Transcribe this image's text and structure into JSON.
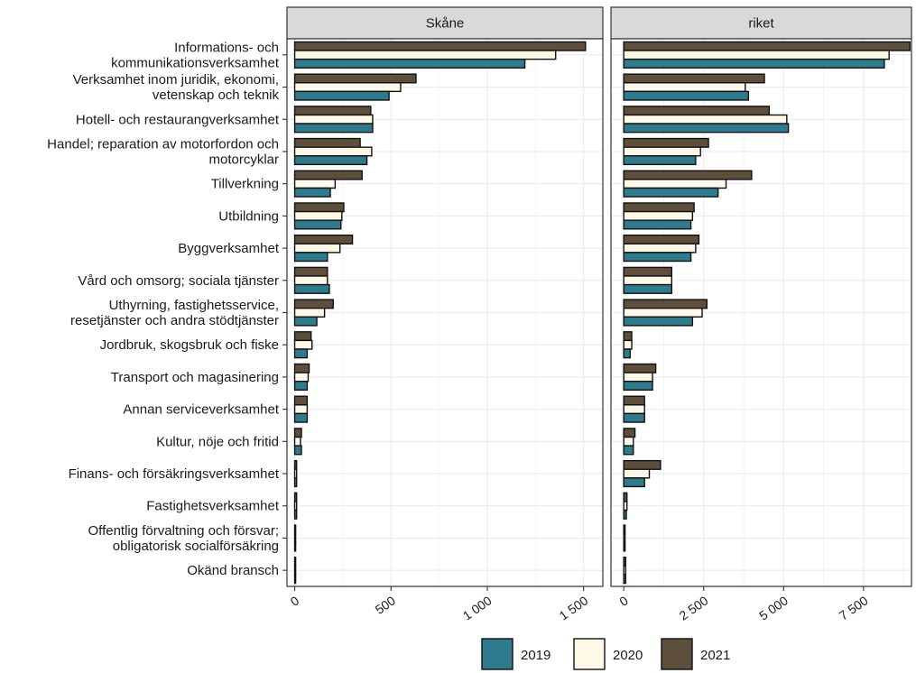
{
  "chart_data": {
    "type": "bar",
    "orientation": "horizontal",
    "grid": true,
    "legend_position": "bottom",
    "categories": [
      [
        "Informations- och",
        "kommunikationsverksamhet"
      ],
      [
        "Verksamhet inom juridik, ekonomi,",
        "vetenskap och teknik"
      ],
      [
        "Hotell- och restaurangverksamhet"
      ],
      [
        "Handel; reparation av motorfordon och",
        "motorcyklar"
      ],
      [
        "Tillverkning"
      ],
      [
        "Utbildning"
      ],
      [
        "Byggverksamhet"
      ],
      [
        "Vård och omsorg; sociala tjänster"
      ],
      [
        "Uthyrning, fastighetsservice,",
        "resetjänster och andra stödtjänster"
      ],
      [
        "Jordbruk, skogsbruk och fiske"
      ],
      [
        "Transport och magasinering"
      ],
      [
        "Annan serviceverksamhet"
      ],
      [
        "Kultur, nöje och fritid"
      ],
      [
        "Finans- och försäkringsverksamhet"
      ],
      [
        "Fastighetsverksamhet"
      ],
      [
        "Offentlig förvaltning och försvar;",
        "obligatorisk socialförsäkring"
      ],
      [
        "Okänd bransch"
      ]
    ],
    "series_colors": {
      "2019": "#2f7b8e",
      "2020": "#fdf8e7",
      "2021": "#5d4f3c"
    },
    "legend": [
      "2019",
      "2020",
      "2021"
    ],
    "panels": [
      {
        "title": "Skåne",
        "xlim": [
          -40,
          1600
        ],
        "xticks": [
          0,
          500,
          1000,
          1500
        ],
        "xtick_labels": [
          "0",
          "500",
          "1 000",
          "1 500"
        ],
        "series": [
          {
            "name": "2019",
            "values": [
              1195,
              490,
              405,
              375,
              185,
              240,
              170,
              180,
              115,
              65,
              65,
              65,
              35,
              10,
              10,
              5,
              5
            ]
          },
          {
            "name": "2020",
            "values": [
              1355,
              550,
              405,
              400,
              210,
              245,
              235,
              170,
              155,
              90,
              70,
              65,
              30,
              10,
              10,
              5,
              5
            ]
          },
          {
            "name": "2021",
            "values": [
              1510,
              630,
              395,
              340,
              350,
              255,
              300,
              170,
              200,
              85,
              75,
              65,
              35,
              10,
              10,
              5,
              5
            ]
          }
        ]
      },
      {
        "title": "riket",
        "xlim": [
          -400,
          9000
        ],
        "xticks": [
          0,
          2500,
          5000,
          7500
        ],
        "xtick_labels": [
          "0",
          "2 500",
          "5 000",
          "7 500"
        ],
        "series": [
          {
            "name": "2019",
            "values": [
              8150,
              3900,
              5150,
              2250,
              2950,
              2100,
              2100,
              1500,
              2150,
              200,
              900,
              650,
              300,
              650,
              80,
              40,
              60
            ]
          },
          {
            "name": "2020",
            "values": [
              8300,
              3800,
              5100,
              2400,
              3200,
              2150,
              2250,
              1500,
              2450,
              250,
              900,
              650,
              300,
              800,
              100,
              40,
              60
            ]
          },
          {
            "name": "2021",
            "values": [
              8950,
              4400,
              4550,
              2650,
              4000,
              2200,
              2350,
              1500,
              2600,
              250,
              1000,
              650,
              350,
              1150,
              100,
              40,
              60
            ]
          }
        ]
      }
    ]
  }
}
